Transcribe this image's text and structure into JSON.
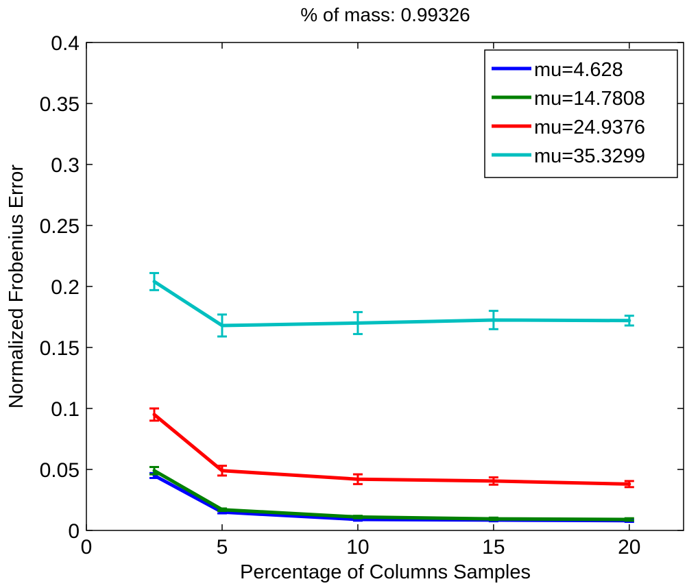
{
  "chart_data": {
    "type": "line",
    "title": "% of mass: 0.99326",
    "xlabel": "Percentage of Columns Samples",
    "ylabel": "Normalized Frobenius Error",
    "xlim": [
      0,
      22
    ],
    "ylim": [
      0,
      0.4
    ],
    "xticks": [
      "0",
      "5",
      "10",
      "15",
      "20"
    ],
    "yticks": [
      "0",
      "0.05",
      "0.1",
      "0.15",
      "0.2",
      "0.25",
      "0.3",
      "0.35",
      "0.4"
    ],
    "grid": false,
    "legend_position": "top-right",
    "x": [
      2.5,
      5,
      10,
      15,
      20
    ],
    "series": [
      {
        "name": "mu=4.628",
        "color": "#0000ff",
        "values": [
          0.045,
          0.015,
          0.009,
          0.0085,
          0.008
        ],
        "errors": [
          0.002,
          0.001,
          0.001,
          0.001,
          0.001
        ]
      },
      {
        "name": "mu=14.7808",
        "color": "#008000",
        "values": [
          0.049,
          0.017,
          0.011,
          0.0095,
          0.009
        ],
        "errors": [
          0.003,
          0.001,
          0.001,
          0.001,
          0.001
        ]
      },
      {
        "name": "mu=24.9376",
        "color": "#ff0000",
        "values": [
          0.095,
          0.049,
          0.042,
          0.0405,
          0.038
        ],
        "errors": [
          0.005,
          0.004,
          0.004,
          0.003,
          0.0025
        ]
      },
      {
        "name": "mu=35.3299",
        "color": "#00bfbf",
        "values": [
          0.204,
          0.168,
          0.17,
          0.1725,
          0.172
        ],
        "errors": [
          0.007,
          0.009,
          0.009,
          0.0075,
          0.004
        ]
      }
    ]
  }
}
